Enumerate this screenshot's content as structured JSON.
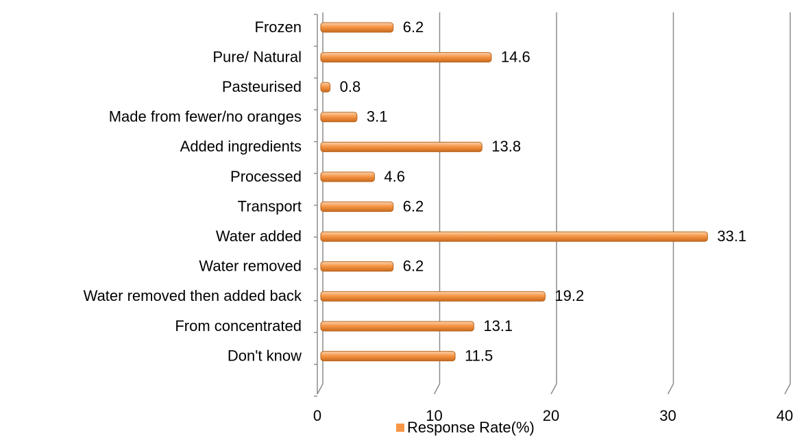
{
  "chart_data": {
    "type": "bar",
    "orientation": "horizontal",
    "categories": [
      "Frozen",
      "Pure/ Natural",
      "Pasteurised",
      "Made from fewer/no oranges",
      "Added ingredients",
      "Processed",
      "Transport",
      "Water added",
      "Water removed",
      "Water removed then added back",
      "From concentrated",
      "Don't know"
    ],
    "series": [
      {
        "name": "Response Rate(%)",
        "color": "#f79646",
        "values": [
          6.2,
          14.6,
          0.8,
          3.1,
          13.8,
          4.6,
          6.2,
          33.1,
          6.2,
          19.2,
          13.1,
          11.5
        ]
      }
    ],
    "xlim": [
      0,
      40
    ],
    "xticks": [
      0,
      10,
      20,
      30,
      40
    ],
    "grid": true,
    "legend": "bottom"
  }
}
